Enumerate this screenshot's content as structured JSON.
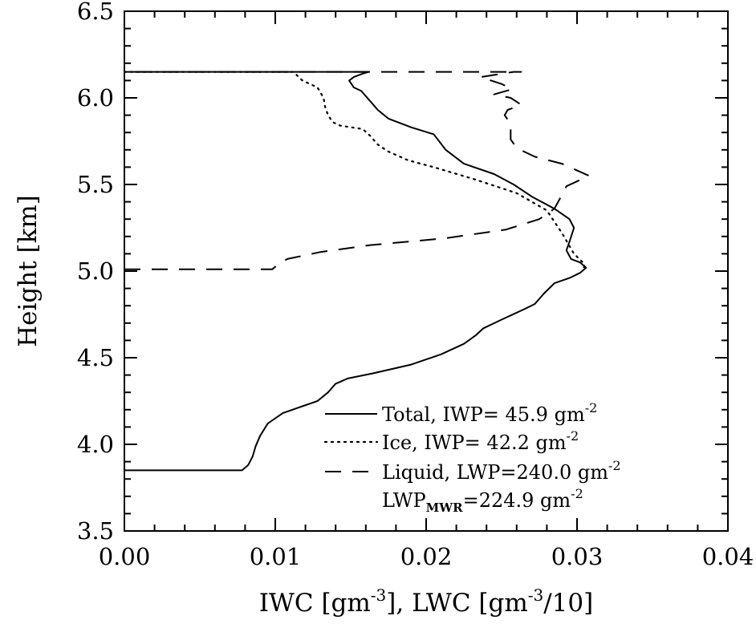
{
  "chart_data": {
    "type": "line",
    "xlabel_parts": {
      "iwc": "IWC [gm",
      "iwc_exp": "-3",
      "iwc_close": "], LWC [gm",
      "lwc_exp": "-3",
      "lwc_close": "/10]"
    },
    "ylabel": "Height [km]",
    "xlim": [
      0.0,
      0.04
    ],
    "ylim": [
      3.5,
      6.5
    ],
    "x_ticks": [
      0.0,
      0.01,
      0.02,
      0.03,
      0.04
    ],
    "x_tick_labels": [
      "0.00",
      "0.01",
      "0.02",
      "0.03",
      "0.04"
    ],
    "y_ticks": [
      3.5,
      4.0,
      4.5,
      5.0,
      5.5,
      6.0,
      6.5
    ],
    "y_tick_labels": [
      "3.5",
      "4.0",
      "4.5",
      "5.0",
      "5.5",
      "6.0",
      "6.5"
    ],
    "grid": false,
    "legend_position": "bottom-right",
    "series": [
      {
        "label_text": "Total, IWP= 45.9 gm",
        "label_exp": "-2",
        "style": "solid",
        "color": "#000000",
        "points": [
          [
            0.0,
            3.85
          ],
          [
            0.0078,
            3.85
          ],
          [
            0.0082,
            3.88
          ],
          [
            0.0085,
            3.93
          ],
          [
            0.0087,
            3.99
          ],
          [
            0.009,
            4.05
          ],
          [
            0.0095,
            4.12
          ],
          [
            0.0105,
            4.18
          ],
          [
            0.0118,
            4.22
          ],
          [
            0.0128,
            4.25
          ],
          [
            0.0135,
            4.3
          ],
          [
            0.014,
            4.35
          ],
          [
            0.0148,
            4.38
          ],
          [
            0.0165,
            4.41
          ],
          [
            0.019,
            4.46
          ],
          [
            0.021,
            4.52
          ],
          [
            0.0225,
            4.58
          ],
          [
            0.0233,
            4.63
          ],
          [
            0.0238,
            4.67
          ],
          [
            0.025,
            4.72
          ],
          [
            0.0265,
            4.78
          ],
          [
            0.0272,
            4.81
          ],
          [
            0.0278,
            4.87
          ],
          [
            0.0285,
            4.93
          ],
          [
            0.0295,
            4.96
          ],
          [
            0.0302,
            4.99
          ],
          [
            0.0306,
            5.02
          ],
          [
            0.0302,
            5.05
          ],
          [
            0.0296,
            5.07
          ],
          [
            0.0293,
            5.12
          ],
          [
            0.0295,
            5.17
          ],
          [
            0.0298,
            5.25
          ],
          [
            0.0295,
            5.3
          ],
          [
            0.0285,
            5.36
          ],
          [
            0.027,
            5.43
          ],
          [
            0.0258,
            5.5
          ],
          [
            0.0245,
            5.56
          ],
          [
            0.0225,
            5.62
          ],
          [
            0.0213,
            5.7
          ],
          [
            0.0205,
            5.79
          ],
          [
            0.019,
            5.83
          ],
          [
            0.0175,
            5.88
          ],
          [
            0.0168,
            5.93
          ],
          [
            0.0163,
            5.98
          ],
          [
            0.0157,
            6.04
          ],
          [
            0.0152,
            6.06
          ],
          [
            0.0149,
            6.1
          ],
          [
            0.0152,
            6.12
          ],
          [
            0.0158,
            6.14
          ],
          [
            0.0162,
            6.15
          ],
          [
            0.0,
            6.15
          ]
        ]
      },
      {
        "label_text": "Ice, IWP= 42.2 gm",
        "label_exp": "-2",
        "style": "dotted",
        "color": "#000000",
        "points": [
          [
            0.0,
            6.15
          ],
          [
            0.0112,
            6.15
          ],
          [
            0.0118,
            6.1
          ],
          [
            0.0128,
            6.06
          ],
          [
            0.0132,
            6.0
          ],
          [
            0.0133,
            5.95
          ],
          [
            0.0135,
            5.9
          ],
          [
            0.0138,
            5.86
          ],
          [
            0.0143,
            5.84
          ],
          [
            0.0158,
            5.82
          ],
          [
            0.0163,
            5.78
          ],
          [
            0.0168,
            5.73
          ],
          [
            0.0175,
            5.69
          ],
          [
            0.0188,
            5.64
          ],
          [
            0.0205,
            5.6
          ],
          [
            0.0232,
            5.53
          ],
          [
            0.026,
            5.45
          ],
          [
            0.028,
            5.35
          ],
          [
            0.029,
            5.22
          ],
          [
            0.0298,
            5.1
          ],
          [
            0.0305,
            5.04
          ],
          [
            0.0304,
            5.0
          ]
        ]
      },
      {
        "label_text": "Liquid, LWP=240.0 gm",
        "label_exp": "-2",
        "style": "dashed",
        "color": "#000000",
        "points": [
          [
            0.0,
            5.01
          ],
          [
            0.0098,
            5.01
          ],
          [
            0.0102,
            5.04
          ],
          [
            0.0108,
            5.07
          ],
          [
            0.013,
            5.11
          ],
          [
            0.0163,
            5.15
          ],
          [
            0.0213,
            5.19
          ],
          [
            0.0253,
            5.24
          ],
          [
            0.0275,
            5.3
          ],
          [
            0.0285,
            5.36
          ],
          [
            0.029,
            5.44
          ],
          [
            0.0293,
            5.49
          ],
          [
            0.0308,
            5.55
          ],
          [
            0.029,
            5.62
          ],
          [
            0.0272,
            5.66
          ],
          [
            0.026,
            5.71
          ],
          [
            0.0256,
            5.76
          ],
          [
            0.0256,
            5.85
          ],
          [
            0.0252,
            5.9
          ],
          [
            0.0254,
            5.93
          ],
          [
            0.0263,
            5.96
          ],
          [
            0.0256,
            6.0
          ],
          [
            0.0245,
            6.02
          ],
          [
            0.0257,
            6.05
          ],
          [
            0.025,
            6.08
          ],
          [
            0.0236,
            6.12
          ],
          [
            0.0258,
            6.15
          ],
          [
            0.0263,
            6.15
          ],
          [
            0.0,
            6.15
          ]
        ]
      }
    ],
    "legend_extra": {
      "prefix": "LWP",
      "sub": "MWR",
      "value": "=224.9 gm",
      "exp": "-2"
    }
  }
}
